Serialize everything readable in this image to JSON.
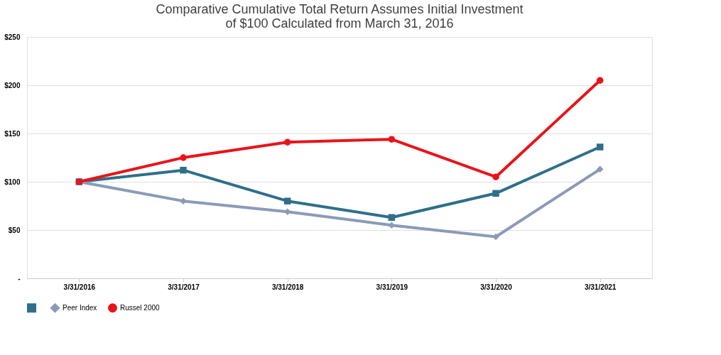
{
  "chart_data": {
    "type": "line",
    "title": [
      "Comparative Cumulative Total Return Assumes Initial Investment",
      "of $100 Calculated from March 31, 2016"
    ],
    "categories": [
      "3/31/2016",
      "3/31/2017",
      "3/31/2018",
      "3/31/2019",
      "3/31/2020",
      "3/31/2021"
    ],
    "series": [
      {
        "color": "#2e6f8a",
        "marker": "square",
        "values": [
          100,
          112,
          80,
          63,
          88,
          136
        ]
      },
      {
        "name": "Peer Index",
        "color": "#8a9bb5",
        "marker": "diamond",
        "values": [
          100,
          80,
          69,
          55,
          43,
          113
        ]
      },
      {
        "name": "Russel 2000",
        "color": "#e8141b",
        "marker": "circle",
        "values": [
          100,
          125,
          141,
          144,
          105,
          205
        ]
      }
    ],
    "ylim": [
      0,
      250
    ],
    "yticks": [
      {
        "value": 0,
        "label": "-"
      },
      {
        "value": 50,
        "label": "$50"
      },
      {
        "value": 100,
        "label": "$100"
      },
      {
        "value": 150,
        "label": "$150"
      },
      {
        "value": 200,
        "label": "$200"
      },
      {
        "value": 250,
        "label": "$250"
      }
    ],
    "grid": "y",
    "legend": "bottom",
    "line_style": "solid"
  }
}
